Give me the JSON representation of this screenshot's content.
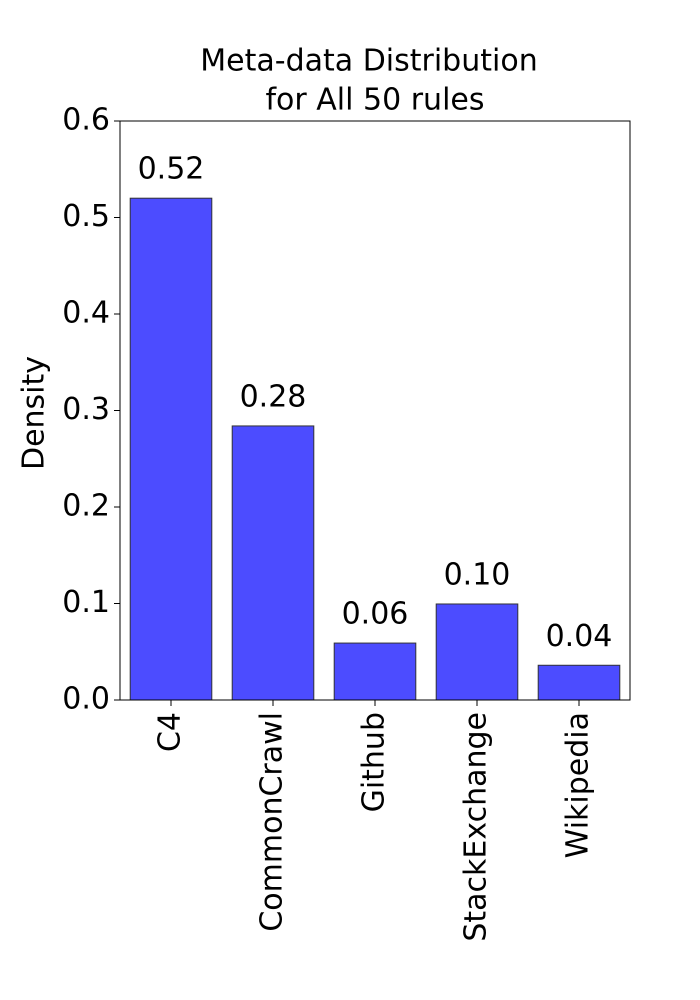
{
  "chart_data": {
    "type": "bar",
    "title": [
      "Meta-data Distribution",
      "for All 50 rules"
    ],
    "y_label": "Density",
    "categories": [
      "C4",
      "CommonCrawl",
      "Github",
      "StackExchange",
      "Wikipedia"
    ],
    "values": [
      0.52,
      0.284,
      0.059,
      0.0995,
      0.036
    ],
    "value_labels": [
      "0.52",
      "0.28",
      "0.06",
      "0.10",
      "0.04"
    ],
    "color": "#4c4cff",
    "ylim": [
      0,
      0.6
    ],
    "yticks": [
      {
        "value": 0,
        "label": "0.0"
      },
      0.1,
      0.2,
      0.3,
      0.4,
      0.5,
      0.6
    ]
  }
}
